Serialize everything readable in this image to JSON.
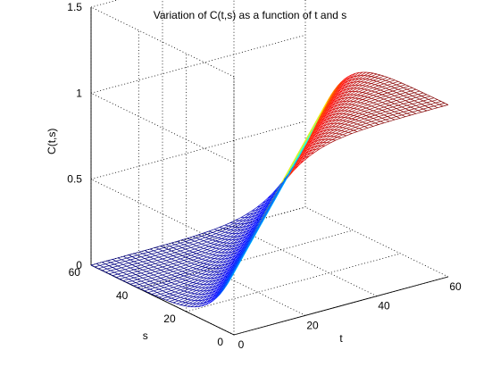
{
  "chart_data": {
    "type": "surface",
    "title": "Variation of C(t,s) as a function of t and s",
    "xlabel": "t",
    "ylabel": "s",
    "zlabel": "C(t,s)",
    "xlim": [
      0,
      60
    ],
    "ylim": [
      0,
      60
    ],
    "zlim": [
      0,
      1.5
    ],
    "xticks": [
      0,
      20,
      40,
      60
    ],
    "yticks": [
      0,
      20,
      40,
      60
    ],
    "zticks": [
      0,
      0.5,
      1,
      1.5
    ],
    "xtick_labels": [
      "0",
      "20",
      "40",
      "60"
    ],
    "ytick_labels": [
      "0",
      "20",
      "40",
      "60"
    ],
    "ztick_labels": [
      "0",
      "0.5",
      "1",
      "1.5"
    ],
    "grid": true,
    "colormap": "jet",
    "mesh_style": "wireframe",
    "grid_points": 41,
    "surface_description": "C(t,s) is ~0 for t - s below about 0, rises along the diagonal t ≈ s, and approaches 1 for large t with small s (high corner near t=60, s=0).",
    "sample_values": [
      {
        "t": 0,
        "s": 0,
        "c": 0.0
      },
      {
        "t": 60,
        "s": 0,
        "c": 1.0
      },
      {
        "t": 60,
        "s": 60,
        "c": 0.0
      },
      {
        "t": 0,
        "s": 60,
        "c": 0.0
      },
      {
        "t": 30,
        "s": 0,
        "c": 0.95
      },
      {
        "t": 60,
        "s": 30,
        "c": 0.75
      }
    ]
  }
}
